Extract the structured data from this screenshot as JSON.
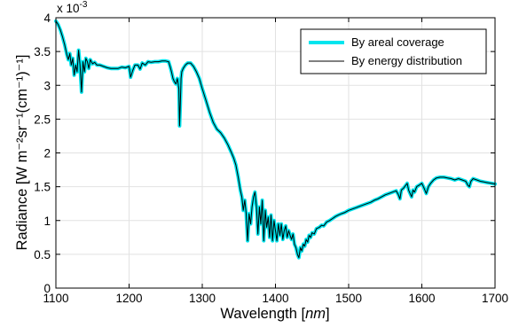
{
  "chart_data": {
    "type": "line",
    "xlabel_text": "Wavelength ",
    "xlabel_unit": "nm",
    "ylabel": "Radiance [W m⁻²sr⁻¹(cm⁻¹)⁻¹]",
    "y_scale_text": "x 10",
    "y_scale_exp": "-3",
    "xlim": [
      1100,
      1700
    ],
    "ylim": [
      0,
      4
    ],
    "x_ticks": [
      "1100",
      "1200",
      "1300",
      "1400",
      "1500",
      "1600",
      "1700"
    ],
    "y_ticks": [
      "0",
      "0.5",
      "1",
      "1.5",
      "2",
      "2.5",
      "3",
      "3.5",
      "4"
    ],
    "grid": true,
    "legend_position": "top-right",
    "colors": {
      "series_areal": "#00e5ee",
      "series_energy": "#000000"
    },
    "series": [
      {
        "name": "By areal coverage",
        "points": [
          [
            1100,
            3.95
          ],
          [
            1103,
            3.9
          ],
          [
            1106,
            3.82
          ],
          [
            1109,
            3.72
          ],
          [
            1112,
            3.6
          ],
          [
            1115,
            3.45
          ],
          [
            1117,
            3.38
          ],
          [
            1119,
            3.47
          ],
          [
            1121,
            3.3
          ],
          [
            1123,
            3.4
          ],
          [
            1125,
            3.15
          ],
          [
            1127,
            3.3
          ],
          [
            1129,
            3.2
          ],
          [
            1131,
            3.52
          ],
          [
            1133,
            3.3
          ],
          [
            1135,
            2.9
          ],
          [
            1137,
            3.35
          ],
          [
            1139,
            3.2
          ],
          [
            1141,
            3.4
          ],
          [
            1143,
            3.35
          ],
          [
            1145,
            3.25
          ],
          [
            1147,
            3.38
          ],
          [
            1150,
            3.32
          ],
          [
            1153,
            3.34
          ],
          [
            1156,
            3.3
          ],
          [
            1160,
            3.3
          ],
          [
            1165,
            3.28
          ],
          [
            1170,
            3.26
          ],
          [
            1175,
            3.25
          ],
          [
            1180,
            3.25
          ],
          [
            1185,
            3.25
          ],
          [
            1190,
            3.27
          ],
          [
            1195,
            3.26
          ],
          [
            1200,
            3.28
          ],
          [
            1202,
            3.12
          ],
          [
            1205,
            3.22
          ],
          [
            1208,
            3.3
          ],
          [
            1212,
            3.3
          ],
          [
            1215,
            3.24
          ],
          [
            1218,
            3.33
          ],
          [
            1222,
            3.3
          ],
          [
            1226,
            3.35
          ],
          [
            1230,
            3.34
          ],
          [
            1235,
            3.35
          ],
          [
            1240,
            3.35
          ],
          [
            1245,
            3.36
          ],
          [
            1250,
            3.36
          ],
          [
            1254,
            3.35
          ],
          [
            1256,
            3.28
          ],
          [
            1258,
            3.2
          ],
          [
            1260,
            3.1
          ],
          [
            1262,
            3.05
          ],
          [
            1264,
            3.02
          ],
          [
            1266,
            3.1
          ],
          [
            1268,
            2.95
          ],
          [
            1269,
            2.4
          ],
          [
            1270,
            2.75
          ],
          [
            1271,
            3.1
          ],
          [
            1272,
            3.2
          ],
          [
            1274,
            3.25
          ],
          [
            1277,
            3.3
          ],
          [
            1280,
            3.33
          ],
          [
            1284,
            3.33
          ],
          [
            1288,
            3.28
          ],
          [
            1292,
            3.2
          ],
          [
            1296,
            3.1
          ],
          [
            1300,
            2.95
          ],
          [
            1305,
            2.78
          ],
          [
            1310,
            2.6
          ],
          [
            1315,
            2.45
          ],
          [
            1320,
            2.35
          ],
          [
            1325,
            2.3
          ],
          [
            1330,
            2.22
          ],
          [
            1335,
            2.12
          ],
          [
            1340,
            2.0
          ],
          [
            1343,
            1.92
          ],
          [
            1346,
            1.82
          ],
          [
            1349,
            1.65
          ],
          [
            1352,
            1.45
          ],
          [
            1354,
            1.35
          ],
          [
            1356,
            1.15
          ],
          [
            1358,
            1.3
          ],
          [
            1360,
            1.1
          ],
          [
            1362,
            0.7
          ],
          [
            1364,
            1.1
          ],
          [
            1366,
            0.95
          ],
          [
            1368,
            1.2
          ],
          [
            1370,
            1.35
          ],
          [
            1372,
            1.42
          ],
          [
            1374,
            1.2
          ],
          [
            1376,
            0.8
          ],
          [
            1378,
            1.2
          ],
          [
            1380,
            0.95
          ],
          [
            1382,
            1.3
          ],
          [
            1384,
            0.7
          ],
          [
            1386,
            1.15
          ],
          [
            1388,
            0.9
          ],
          [
            1390,
            1.05
          ],
          [
            1392,
            0.75
          ],
          [
            1394,
            1.08
          ],
          [
            1396,
            0.7
          ],
          [
            1398,
            1.0
          ],
          [
            1400,
            0.85
          ],
          [
            1402,
            0.7
          ],
          [
            1404,
            0.95
          ],
          [
            1406,
            0.78
          ],
          [
            1408,
            0.95
          ],
          [
            1410,
            0.72
          ],
          [
            1412,
            0.85
          ],
          [
            1414,
            0.92
          ],
          [
            1416,
            0.75
          ],
          [
            1418,
            0.85
          ],
          [
            1420,
            0.78
          ],
          [
            1422,
            0.72
          ],
          [
            1424,
            0.8
          ],
          [
            1426,
            0.65
          ],
          [
            1428,
            0.6
          ],
          [
            1430,
            0.5
          ],
          [
            1432,
            0.45
          ],
          [
            1434,
            0.6
          ],
          [
            1436,
            0.55
          ],
          [
            1438,
            0.65
          ],
          [
            1440,
            0.62
          ],
          [
            1442,
            0.72
          ],
          [
            1444,
            0.68
          ],
          [
            1446,
            0.78
          ],
          [
            1448,
            0.75
          ],
          [
            1450,
            0.82
          ],
          [
            1453,
            0.8
          ],
          [
            1456,
            0.88
          ],
          [
            1460,
            0.9
          ],
          [
            1463,
            0.93
          ],
          [
            1466,
            0.92
          ],
          [
            1470,
            0.98
          ],
          [
            1474,
            1.0
          ],
          [
            1478,
            1.03
          ],
          [
            1482,
            1.06
          ],
          [
            1486,
            1.08
          ],
          [
            1490,
            1.1
          ],
          [
            1495,
            1.12
          ],
          [
            1500,
            1.15
          ],
          [
            1505,
            1.17
          ],
          [
            1510,
            1.19
          ],
          [
            1515,
            1.21
          ],
          [
            1520,
            1.23
          ],
          [
            1525,
            1.25
          ],
          [
            1530,
            1.27
          ],
          [
            1535,
            1.3
          ],
          [
            1540,
            1.32
          ],
          [
            1545,
            1.35
          ],
          [
            1550,
            1.38
          ],
          [
            1555,
            1.4
          ],
          [
            1560,
            1.42
          ],
          [
            1565,
            1.44
          ],
          [
            1568,
            1.38
          ],
          [
            1570,
            1.32
          ],
          [
            1572,
            1.45
          ],
          [
            1575,
            1.48
          ],
          [
            1578,
            1.52
          ],
          [
            1580,
            1.55
          ],
          [
            1582,
            1.45
          ],
          [
            1584,
            1.4
          ],
          [
            1586,
            1.35
          ],
          [
            1588,
            1.45
          ],
          [
            1590,
            1.42
          ],
          [
            1593,
            1.5
          ],
          [
            1596,
            1.52
          ],
          [
            1600,
            1.55
          ],
          [
            1603,
            1.48
          ],
          [
            1606,
            1.4
          ],
          [
            1609,
            1.5
          ],
          [
            1612,
            1.55
          ],
          [
            1616,
            1.6
          ],
          [
            1620,
            1.63
          ],
          [
            1625,
            1.64
          ],
          [
            1630,
            1.64
          ],
          [
            1635,
            1.63
          ],
          [
            1640,
            1.62
          ],
          [
            1645,
            1.6
          ],
          [
            1650,
            1.62
          ],
          [
            1655,
            1.6
          ],
          [
            1660,
            1.58
          ],
          [
            1663,
            1.52
          ],
          [
            1665,
            1.5
          ],
          [
            1667,
            1.58
          ],
          [
            1670,
            1.62
          ],
          [
            1675,
            1.6
          ],
          [
            1680,
            1.58
          ],
          [
            1685,
            1.57
          ],
          [
            1690,
            1.56
          ],
          [
            1695,
            1.55
          ],
          [
            1700,
            1.54
          ]
        ]
      },
      {
        "name": "By energy distribution",
        "same_as_series_index": 0
      }
    ]
  }
}
